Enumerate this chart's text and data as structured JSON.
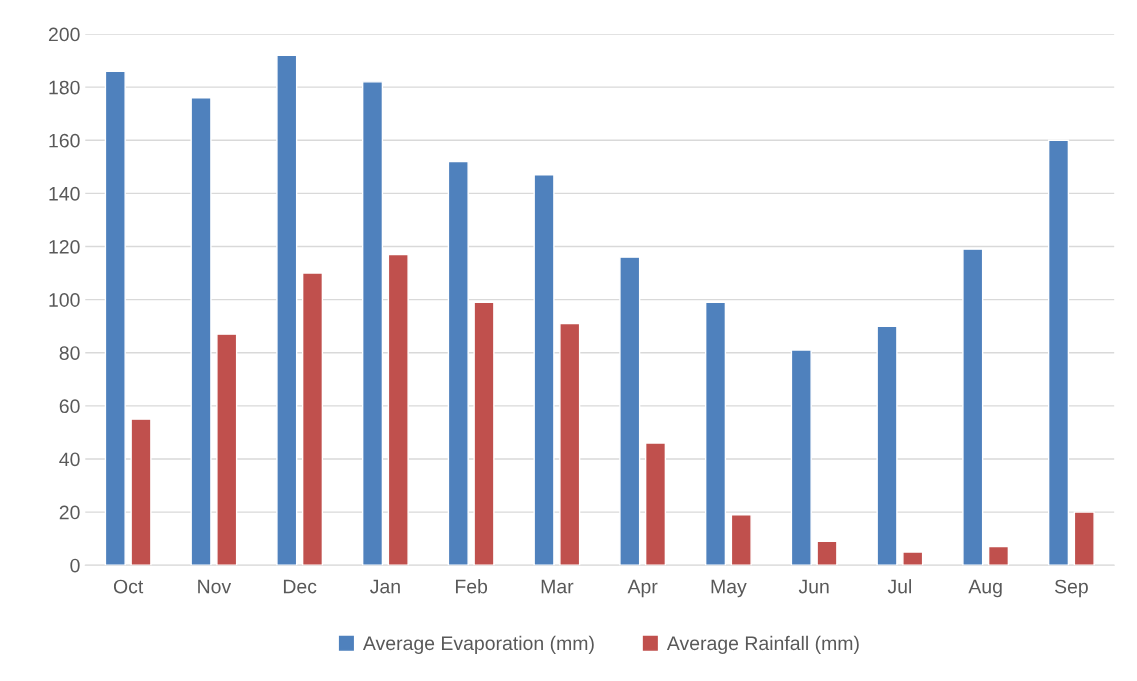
{
  "chart_data": {
    "type": "bar",
    "categories": [
      "Oct",
      "Nov",
      "Dec",
      "Jan",
      "Feb",
      "Mar",
      "Apr",
      "May",
      "Jun",
      "Jul",
      "Aug",
      "Sep"
    ],
    "series": [
      {
        "name": "Average Evaporation (mm)",
        "color": "#4f81bd",
        "values": [
          186,
          176,
          192,
          182,
          152,
          147,
          116,
          99,
          81,
          90,
          119,
          160
        ]
      },
      {
        "name": "Average Rainfall (mm)",
        "color": "#c0504d",
        "values": [
          55,
          87,
          110,
          117,
          99,
          91,
          46,
          19,
          9,
          5,
          7,
          20
        ]
      }
    ],
    "ylim": [
      0,
      200
    ],
    "yticks": [
      0,
      20,
      40,
      60,
      80,
      100,
      120,
      140,
      160,
      180,
      200
    ],
    "grid": "y",
    "legend": "bottom"
  }
}
